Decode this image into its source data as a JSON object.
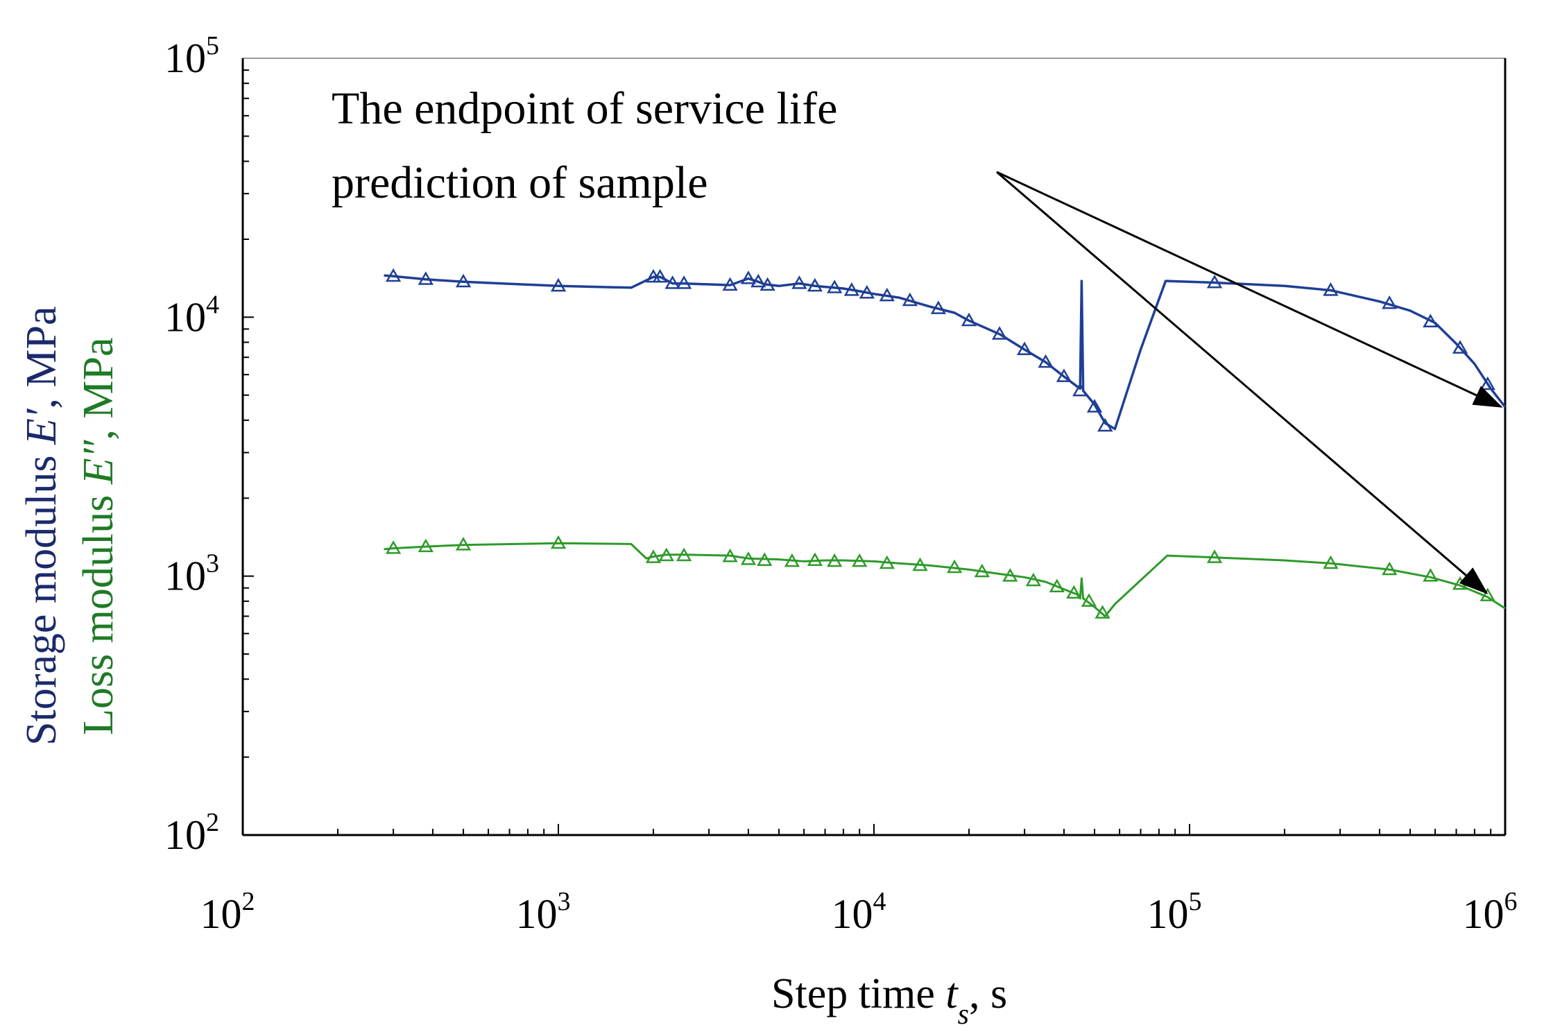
{
  "chart_data": {
    "type": "line",
    "x_scale": "log",
    "y_scale": "log",
    "xlim": [
      100,
      1000000
    ],
    "ylim": [
      100,
      100000
    ],
    "x_ticks": [
      {
        "base": "10",
        "exp": "2",
        "value": 100
      },
      {
        "base": "10",
        "exp": "3",
        "value": 1000
      },
      {
        "base": "10",
        "exp": "4",
        "value": 10000
      },
      {
        "base": "10",
        "exp": "5",
        "value": 100000
      },
      {
        "base": "10",
        "exp": "6",
        "value": 1000000
      }
    ],
    "y_ticks": [
      {
        "base": "10",
        "exp": "2",
        "value": 100
      },
      {
        "base": "10",
        "exp": "3",
        "value": 1000
      },
      {
        "base": "10",
        "exp": "4",
        "value": 10000
      },
      {
        "base": "10",
        "exp": "5",
        "value": 100000
      }
    ],
    "xlabel": {
      "main": "Step time ",
      "italic": "t",
      "sub": "s",
      "tail": ", s"
    },
    "ylabel_storage": {
      "main": "Storage modulus ",
      "italic": "E′",
      "tail": ", MPa"
    },
    "ylabel_loss": {
      "main": "Loss modulus ",
      "italic": "E″",
      "tail": ", MPa"
    },
    "grid": false,
    "annotation": {
      "lines": [
        "The endpoint of service life",
        "prediction of sample"
      ],
      "arrow_targets": [
        {
          "x": 1000000,
          "y": 4400
        },
        {
          "x": 900000,
          "y": 840
        }
      ]
    },
    "series": [
      {
        "color": "#1f3f95",
        "x": [
          280,
          300,
          380,
          500,
          1000,
          1700,
          2000,
          2100,
          2200,
          2300,
          2500,
          3500,
          4000,
          4300,
          4500,
          5000,
          5800,
          6500,
          7000,
          8000,
          9000,
          10000,
          12000,
          15000,
          18000,
          20000,
          25000,
          30000,
          35000,
          40000,
          44000,
          45000,
          45500,
          46000,
          50000,
          54000,
          58000,
          70000,
          84000,
          120000,
          200000,
          280000,
          400000,
          500000,
          600000,
          700000,
          800000,
          900000,
          1000000
        ],
        "y": [
          14500,
          14400,
          14000,
          13700,
          13200,
          13000,
          14300,
          14300,
          13900,
          13500,
          13500,
          13300,
          14100,
          13700,
          13400,
          13200,
          13500,
          13200,
          13100,
          12900,
          12600,
          12300,
          11900,
          11000,
          10400,
          9700,
          8600,
          7500,
          6700,
          5900,
          5400,
          5300,
          13800,
          5200,
          4600,
          3900,
          3700,
          7500,
          13800,
          13600,
          13200,
          12700,
          11500,
          10600,
          9500,
          7900,
          6600,
          5300,
          4500
        ],
        "marker_x": [
          300,
          380,
          500,
          1000,
          2000,
          2100,
          2300,
          2500,
          3500,
          4000,
          4300,
          4600,
          5800,
          6500,
          7500,
          8500,
          9500,
          11000,
          13000,
          16000,
          20000,
          25000,
          30000,
          35000,
          40000,
          45000,
          50000,
          54000,
          120000,
          280000,
          430000,
          580000,
          720000,
          880000
        ],
        "marker_y": [
          14400,
          14000,
          13700,
          13200,
          14300,
          14300,
          13500,
          13500,
          13300,
          14100,
          13700,
          13300,
          13500,
          13200,
          13000,
          12700,
          12400,
          12100,
          11600,
          10800,
          9700,
          8600,
          7500,
          6700,
          5900,
          5200,
          4500,
          3800,
          13600,
          12700,
          11300,
          9600,
          7600,
          5500
        ]
      },
      {
        "color": "#2e9a2a",
        "x": [
          280,
          300,
          380,
          500,
          1000,
          1700,
          1900,
          2000,
          2200,
          2500,
          3500,
          4000,
          5000,
          6000,
          7000,
          8000,
          10000,
          12000,
          15000,
          20000,
          25000,
          30000,
          35000,
          40000,
          44000,
          45000,
          45500,
          46000,
          50000,
          54000,
          58000,
          85000,
          120000,
          200000,
          280000,
          430000,
          580000,
          720000,
          880000,
          1000000
        ],
        "y": [
          1270,
          1280,
          1300,
          1320,
          1340,
          1330,
          1170,
          1190,
          1210,
          1210,
          1200,
          1170,
          1160,
          1140,
          1150,
          1150,
          1140,
          1120,
          1100,
          1060,
          1020,
          990,
          950,
          890,
          850,
          820,
          980,
          820,
          760,
          700,
          780,
          1200,
          1180,
          1150,
          1120,
          1060,
          990,
          920,
          830,
          750
        ],
        "marker_x": [
          300,
          380,
          500,
          1000,
          2000,
          2200,
          2500,
          3500,
          4000,
          4500,
          5500,
          6500,
          7500,
          9000,
          11000,
          14000,
          18000,
          22000,
          27000,
          32000,
          38000,
          43000,
          48000,
          53000,
          120000,
          280000,
          430000,
          580000,
          720000,
          880000
        ],
        "marker_y": [
          1280,
          1300,
          1320,
          1340,
          1180,
          1200,
          1200,
          1190,
          1160,
          1150,
          1140,
          1150,
          1140,
          1140,
          1120,
          1100,
          1080,
          1040,
          1000,
          960,
          910,
          860,
          800,
          720,
          1180,
          1120,
          1060,
          1000,
          930,
          840
        ]
      }
    ]
  }
}
